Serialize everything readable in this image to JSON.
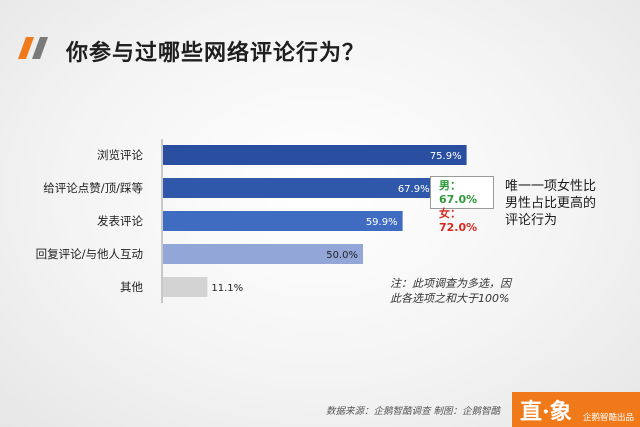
{
  "title": "你参与过哪些网络评论行为？",
  "chart_data": {
    "type": "bar",
    "orientation": "horizontal",
    "categories": [
      "浏览评论",
      "给评论点赞/顶/踩等",
      "发表评论",
      "回复评论/与他人互动",
      "其他"
    ],
    "values": [
      75.9,
      67.9,
      59.9,
      50.0,
      11.1
    ],
    "data_labels": [
      "75.9%",
      "67.9%",
      "59.9%",
      "50.0%",
      "11.1%"
    ],
    "xlim": [
      0,
      80
    ],
    "grid": false,
    "colors": [
      "#2b4fa0",
      "#2f58ab",
      "#3f6cc0",
      "#93a6d8",
      "#d3d3d3"
    ]
  },
  "gender_split": {
    "male": "男：67.0%",
    "female": "女：72.0%"
  },
  "side_note": "唯一一项女性比男性占比更高的评论行为",
  "footnote": "注：此项调查为多选，因此各选项之和大于100%",
  "source": "数据来源：企鹅智酷调查  制图：企鹅智酷",
  "brand": {
    "logo": "直·象",
    "text": "企鹅智酷出品",
    "color": "#f07a1a"
  },
  "accent_color": "#f07a1a"
}
